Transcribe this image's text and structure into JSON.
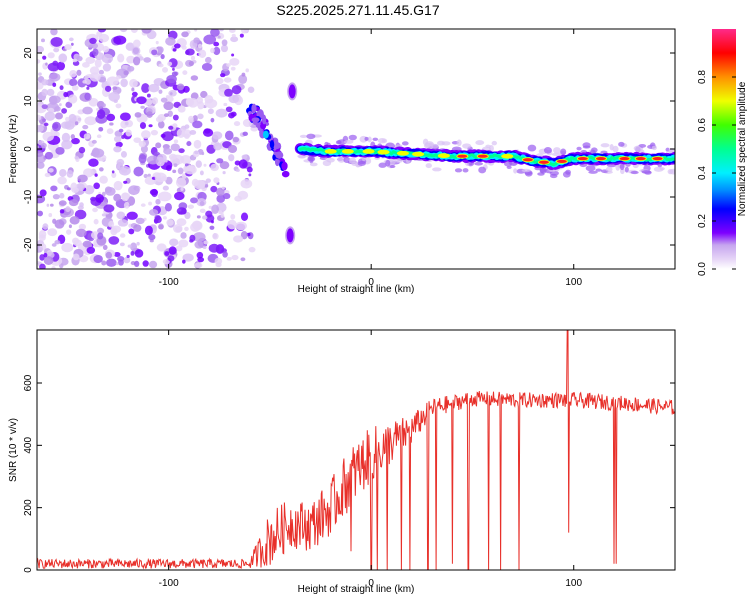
{
  "chart_data": [
    {
      "type": "heatmap",
      "title": "S225.2025.271.11.45.G17",
      "xlabel": "Height of straight line (km)",
      "ylabel": "Frequency (Hz)",
      "xlim": [
        -165,
        150
      ],
      "ylim": [
        -25,
        25
      ],
      "xticks": [
        "-100",
        "0",
        "100"
      ],
      "xtick_values": [
        -100,
        0,
        100
      ],
      "yticks": [
        "-20",
        "-10",
        "0",
        "10",
        "20"
      ],
      "ytick_values": [
        -20,
        -10,
        0,
        10,
        20
      ],
      "colorbar": {
        "label": "Normalized spectral amplitude",
        "ticks": [
          "0.0",
          "0.2",
          "0.4",
          "0.6",
          "0.8"
        ],
        "tick_values": [
          0.0,
          0.2,
          0.4,
          0.6,
          0.8
        ],
        "range": [
          0,
          1
        ]
      },
      "noise_region_km": [
        -165,
        -60
      ],
      "features": [
        {
          "name": "main-signal-track",
          "x": [
            -35,
            -20,
            0,
            20,
            40,
            60,
            70,
            80,
            90,
            100,
            110,
            125,
            150
          ],
          "freq_hz": [
            0,
            -0.5,
            -0.5,
            -1.0,
            -1.5,
            -1.5,
            -1.5,
            -2.5,
            -3.0,
            -2.0,
            -2.0,
            -2.0,
            -2.0
          ]
        },
        {
          "name": "chirp-streak",
          "x": [
            -60,
            -55,
            -50,
            -45,
            -42
          ],
          "freq_hz": [
            8,
            6,
            2,
            -2,
            -5
          ]
        },
        {
          "name": "upper-blob",
          "x": -39,
          "freq_hz": 12
        },
        {
          "name": "lower-blob",
          "x": -40,
          "freq_hz": -18
        }
      ]
    },
    {
      "type": "line",
      "xlabel": "Height of straight line (km)",
      "ylabel": "SNR (10 * v/v)",
      "xlim": [
        -165,
        150
      ],
      "ylim": [
        0,
        770
      ],
      "xticks": [
        "-100",
        "0",
        "100"
      ],
      "xtick_values": [
        -100,
        0,
        100
      ],
      "yticks": [
        "0",
        "200",
        "400",
        "600"
      ],
      "ytick_values": [
        0,
        200,
        400,
        600
      ],
      "series": [
        {
          "name": "SNR",
          "color": "#e8302a",
          "envelope": {
            "x": [
              -165,
              -60,
              -50,
              -40,
              -30,
              -20,
              -10,
              0,
              10,
              20,
              30,
              50,
              75,
              100,
              125,
              150
            ],
            "y": [
              20,
              20,
              100,
              150,
              140,
              200,
              300,
              370,
              410,
              450,
              520,
              550,
              545,
              545,
              535,
              520
            ]
          },
          "noise_amplitude": [
            15,
            15,
            90,
            80,
            80,
            90,
            100,
            90,
            70,
            50,
            30,
            25,
            25,
            25,
            25,
            25
          ],
          "dropouts": [
            {
              "x": -20,
              "y": 120
            },
            {
              "x": -10,
              "y": 60
            },
            {
              "x": 0,
              "y": 0
            },
            {
              "x": 3,
              "y": 0
            },
            {
              "x": 8,
              "y": 0
            },
            {
              "x": 15,
              "y": 0
            },
            {
              "x": 19,
              "y": 0
            },
            {
              "x": 28,
              "y": 0
            },
            {
              "x": 32,
              "y": 0
            },
            {
              "x": 40,
              "y": 20
            },
            {
              "x": 48,
              "y": 0
            },
            {
              "x": 58,
              "y": 0
            },
            {
              "x": 64,
              "y": 0
            },
            {
              "x": 73,
              "y": 0
            },
            {
              "x": 120,
              "y": 20
            },
            {
              "x": 121,
              "y": 20
            }
          ],
          "spikes": [
            {
              "x": 97,
              "y": 770
            },
            {
              "x": 97.5,
              "y": 120
            }
          ]
        }
      ]
    }
  ]
}
